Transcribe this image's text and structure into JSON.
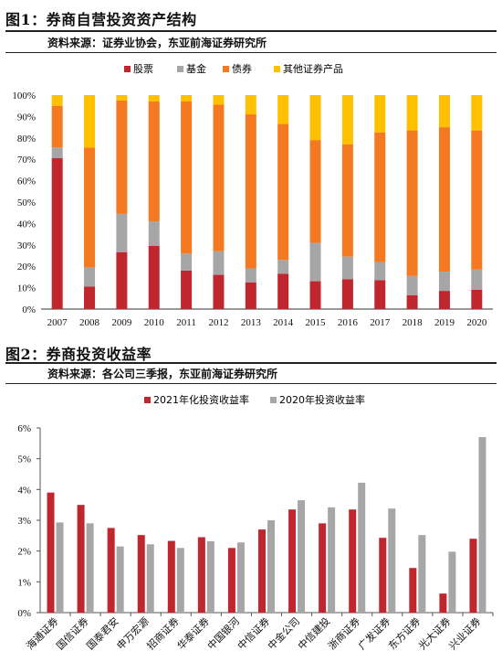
{
  "colors": {
    "stocks": "#c0262d",
    "funds": "#a6a6a6",
    "bonds": "#f47920",
    "other": "#ffc000",
    "y2021": "#c0262d",
    "y2020": "#a6a6a6"
  },
  "figure1": {
    "label": "图1：",
    "title": "券商自营投资资产结构",
    "source": "资料来源：证券业协会，东亚前海证券研究所"
  },
  "figure2": {
    "label": "图2：",
    "title": "券商投资收益率",
    "source": "资料来源：各公司三季报，东亚前海证券研究所"
  },
  "chart_data": [
    {
      "type": "bar",
      "stacked": true,
      "categories": [
        "2007",
        "2008",
        "2009",
        "2010",
        "2011",
        "2012",
        "2013",
        "2014",
        "2015",
        "2016",
        "2017",
        "2018",
        "2019",
        "2020"
      ],
      "series": [
        {
          "name": "股票",
          "values": [
            70.5,
            10.5,
            26.5,
            29.5,
            18,
            16,
            12.5,
            16.5,
            13,
            14,
            13.5,
            6.5,
            8.5,
            9
          ]
        },
        {
          "name": "基金",
          "values": [
            5,
            9,
            18,
            11.5,
            8,
            11,
            6.5,
            6.5,
            18,
            10.5,
            8.5,
            9,
            9,
            9.5
          ]
        },
        {
          "name": "债券",
          "values": [
            19.5,
            56,
            53,
            56,
            71,
            68.5,
            72,
            63.5,
            48,
            52.5,
            60.5,
            68,
            67.5,
            65
          ]
        },
        {
          "name": "其他证券产品",
          "values": [
            5,
            24.5,
            2.5,
            3,
            3,
            4.5,
            9,
            13.5,
            21,
            23,
            17.5,
            16.5,
            15,
            16.5
          ]
        }
      ],
      "yticks": [
        "0%",
        "10%",
        "20%",
        "30%",
        "40%",
        "50%",
        "60%",
        "70%",
        "80%",
        "90%",
        "100%"
      ],
      "ylim": [
        0,
        100
      ],
      "legend_position": "top"
    },
    {
      "type": "bar",
      "categories": [
        "海通证券",
        "国信证券",
        "国泰君安",
        "申万宏源",
        "招商证券",
        "华泰证券",
        "中国银河",
        "中信证券",
        "中金公司",
        "中信建投",
        "浙商证券",
        "广发证券",
        "东方证券",
        "光大证券",
        "兴业证券"
      ],
      "series": [
        {
          "name": "2021年化投资收益率",
          "values": [
            3.9,
            3.5,
            2.75,
            2.52,
            2.33,
            2.45,
            2.1,
            2.7,
            3.35,
            2.9,
            3.35,
            2.43,
            1.45,
            0.62,
            2.4
          ]
        },
        {
          "name": "2020年投资收益率",
          "values": [
            2.93,
            2.9,
            2.15,
            2.22,
            2.1,
            2.32,
            2.28,
            3.0,
            3.65,
            3.42,
            4.22,
            3.38,
            2.52,
            1.98,
            5.7
          ]
        }
      ],
      "yticks": [
        "0%",
        "1%",
        "2%",
        "3%",
        "4%",
        "5%",
        "6%"
      ],
      "ylim": [
        0,
        6
      ],
      "legend_position": "top"
    }
  ]
}
